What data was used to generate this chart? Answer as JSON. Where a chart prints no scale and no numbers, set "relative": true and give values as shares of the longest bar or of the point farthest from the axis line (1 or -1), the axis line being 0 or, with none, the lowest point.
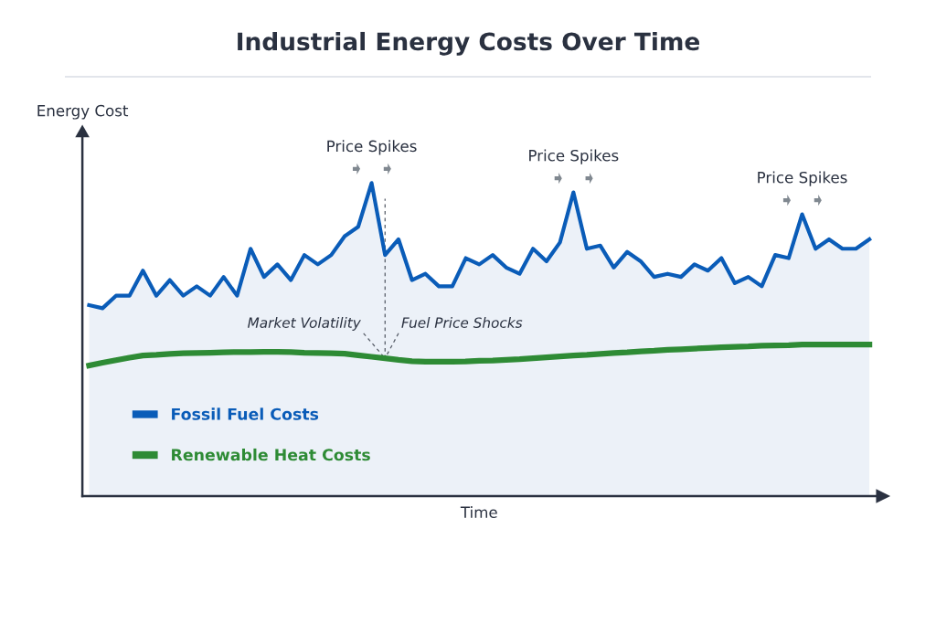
{
  "chart_data": {
    "type": "line",
    "title": "Industrial Energy Costs Over Time",
    "xlabel": "Time",
    "ylabel": "Energy Cost",
    "relative": true,
    "categories": [
      null,
      null,
      null,
      null,
      null,
      null,
      null,
      null,
      null,
      null,
      null,
      null,
      null,
      null,
      null,
      null,
      null,
      null,
      null,
      null,
      null,
      null,
      null,
      null,
      null,
      null,
      null,
      null,
      null,
      null,
      null,
      null,
      null,
      null,
      null,
      null,
      null,
      null,
      null,
      null,
      null,
      null,
      null,
      null,
      null,
      null,
      null,
      null,
      null,
      null,
      null,
      null,
      null,
      null,
      null,
      null,
      null,
      null,
      null
    ],
    "series": [
      {
        "name": "Fossil Fuel Costs",
        "type": "area",
        "color": "#0a5cb8",
        "values": [
          0.61,
          0.6,
          0.64,
          0.64,
          0.72,
          0.64,
          0.69,
          0.64,
          0.67,
          0.64,
          0.7,
          0.64,
          0.79,
          0.7,
          0.74,
          0.69,
          0.77,
          0.74,
          0.77,
          0.83,
          0.86,
          1.0,
          0.77,
          0.82,
          0.69,
          0.71,
          0.67,
          0.67,
          0.76,
          0.74,
          0.77,
          0.73,
          0.71,
          0.79,
          0.75,
          0.81,
          0.97,
          0.79,
          0.8,
          0.73,
          0.78,
          0.75,
          0.7,
          0.71,
          0.7,
          0.74,
          0.72,
          0.76,
          0.68,
          0.7,
          0.67,
          0.77,
          0.76,
          0.9,
          0.79,
          0.82,
          0.79,
          0.79,
          0.82
        ]
      },
      {
        "name": "Renewable Heat Costs",
        "type": "line",
        "color": "#2e8b35",
        "values": [
          0.417,
          0.426,
          0.434,
          0.442,
          0.449,
          0.451,
          0.454,
          0.456,
          0.457,
          0.458,
          0.459,
          0.46,
          0.46,
          0.461,
          0.461,
          0.46,
          0.458,
          0.457,
          0.456,
          0.455,
          0.45,
          0.445,
          0.44,
          0.435,
          0.431,
          0.429,
          0.429,
          0.429,
          0.43,
          0.432,
          0.433,
          0.435,
          0.437,
          0.44,
          0.443,
          0.446,
          0.449,
          0.451,
          0.454,
          0.457,
          0.459,
          0.462,
          0.464,
          0.467,
          0.469,
          0.471,
          0.473,
          0.475,
          0.477,
          0.478,
          0.48,
          0.481,
          0.482,
          0.484,
          0.484,
          0.484,
          0.484,
          0.484,
          0.484
        ]
      }
    ],
    "annotations": [
      "Price Spikes",
      "Price Spikes",
      "Price Spikes",
      "Market Volatility",
      "Fuel Price Shocks"
    ],
    "legend": "bottom left",
    "marker": "none",
    "line_style": "solid"
  }
}
